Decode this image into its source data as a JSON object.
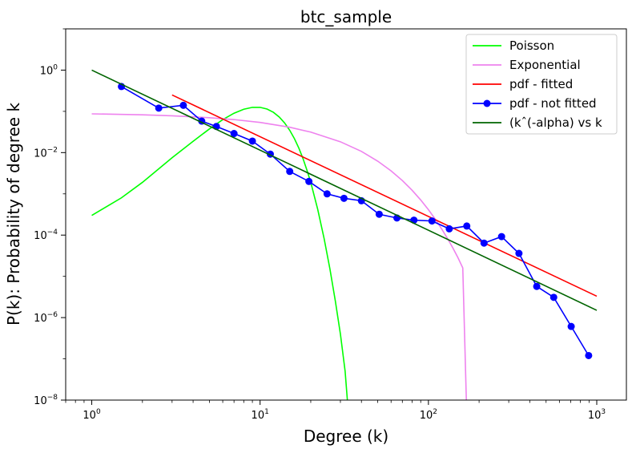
{
  "chart_data": {
    "type": "line",
    "title": "btc_sample",
    "xlabel": "Degree (k)",
    "ylabel": "P(k): Probability of degree k",
    "xscale": "log",
    "yscale": "log",
    "xlim": [
      0.7,
      1500
    ],
    "ylim": [
      1e-08,
      10
    ],
    "grid": false,
    "legend_position": "top-right",
    "x_ticks": [
      {
        "value": 1,
        "base": "10",
        "exp": "0"
      },
      {
        "value": 10,
        "base": "10",
        "exp": "1"
      },
      {
        "value": 100,
        "base": "10",
        "exp": "2"
      },
      {
        "value": 1000,
        "base": "10",
        "exp": "3"
      }
    ],
    "y_ticks": [
      {
        "value": 1e-08,
        "base": "10",
        "exp": "−8"
      },
      {
        "value": 1e-06,
        "base": "10",
        "exp": "−6"
      },
      {
        "value": 0.0001,
        "base": "10",
        "exp": "−4"
      },
      {
        "value": 0.01,
        "base": "10",
        "exp": "−2"
      },
      {
        "value": 1,
        "base": "10",
        "exp": "0"
      }
    ],
    "series": [
      {
        "name": "Poisson",
        "color": "#00ff00",
        "marker": "none",
        "x": [
          1,
          1.5,
          2,
          3,
          4,
          5,
          6,
          7,
          8,
          9,
          10,
          11,
          12,
          13,
          14,
          15,
          16,
          17,
          18,
          19,
          20,
          22,
          24,
          26,
          28,
          30,
          32,
          33
        ],
        "y": [
          0.0003,
          0.0008,
          0.0019,
          0.0075,
          0.0188,
          0.0375,
          0.063,
          0.09,
          0.1125,
          0.125,
          0.125,
          0.1138,
          0.0948,
          0.0729,
          0.0521,
          0.0347,
          0.0217,
          0.0128,
          0.0071,
          0.0037,
          0.0019,
          0.00042,
          8.3e-05,
          1.5e-05,
          2.5e-06,
          4e-07,
          5e-08,
          1e-08
        ]
      },
      {
        "name": "Exponential",
        "color": "#ee82ee",
        "marker": "none",
        "x": [
          1,
          2,
          3,
          5,
          7,
          10,
          15,
          20,
          30,
          40,
          50,
          60,
          70,
          80,
          90,
          100,
          110,
          120,
          130,
          140,
          150,
          160,
          168
        ],
        "y": [
          0.087,
          0.0825,
          0.078,
          0.0702,
          0.0632,
          0.054,
          0.0412,
          0.0314,
          0.0183,
          0.0107,
          0.0062,
          0.0036,
          0.0021,
          0.00122,
          0.00071,
          0.000414,
          0.000241,
          0.00014,
          8.2e-05,
          4.8e-05,
          2.8e-05,
          1.6e-05,
          1e-08
        ]
      },
      {
        "name": "pdf - fitted",
        "color": "#ff0000",
        "marker": "none",
        "x": [
          3,
          1000
        ],
        "y": [
          0.25,
          3.3e-06
        ]
      },
      {
        "name": "pdf - not fitted",
        "color": "#0000ff",
        "marker": "circle",
        "x": [
          1.5,
          2.5,
          3.5,
          4.5,
          5.5,
          7,
          9,
          11.5,
          15,
          19.5,
          25,
          31.5,
          40,
          51,
          65,
          82,
          105,
          133,
          169,
          214,
          272,
          345,
          440,
          555,
          705,
          895
        ],
        "y": [
          0.4,
          0.12,
          0.14,
          0.058,
          0.043,
          0.029,
          0.019,
          0.0092,
          0.0035,
          0.002,
          0.001,
          0.00078,
          0.00068,
          0.00032,
          0.00026,
          0.00023,
          0.00022,
          0.000142,
          0.000166,
          6.4e-05,
          9.2e-05,
          3.6e-05,
          5.7e-06,
          3.1e-06,
          6.1e-07,
          1.2e-07
        ]
      },
      {
        "name": "(kˆ(-alpha) vs k",
        "color": "#006400",
        "marker": "none",
        "x": [
          1,
          1000
        ],
        "y": [
          1,
          1.5e-06
        ]
      }
    ]
  }
}
